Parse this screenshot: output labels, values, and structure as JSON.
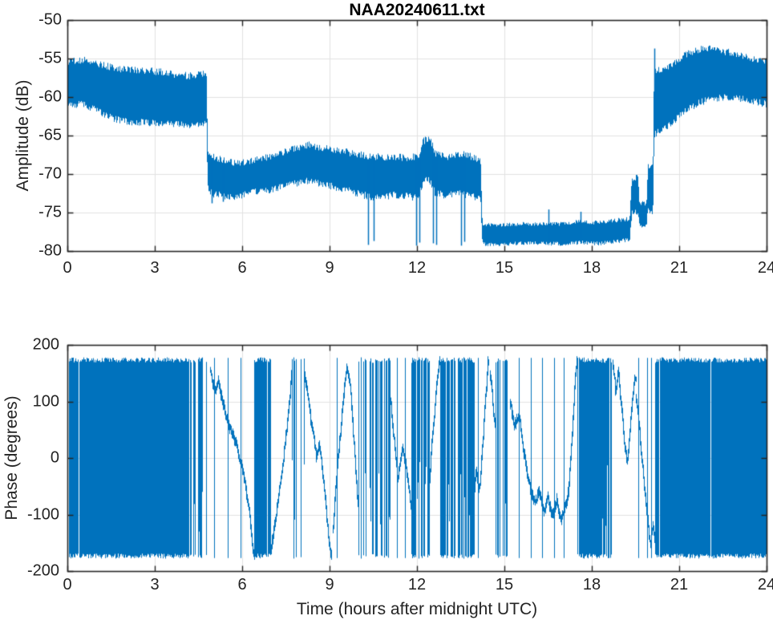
{
  "figure": {
    "background": "#ffffff",
    "line_color": "#0072bd",
    "grid_color": "#e2e2e2",
    "axis_color": "#262626",
    "text_color": "#242424",
    "title_color": "#000000"
  },
  "chart_data": [
    {
      "type": "line",
      "title": "NAA20240611.txt",
      "xlabel": "",
      "ylabel": "Amplitude (dB)",
      "xlim": [
        0,
        24
      ],
      "ylim": [
        -80,
        -50
      ],
      "xticks": [
        0,
        3,
        6,
        9,
        12,
        15,
        18,
        21,
        24
      ],
      "yticks": [
        -80,
        -75,
        -70,
        -65,
        -60,
        -55,
        -50
      ],
      "grid": true,
      "series_style": "noisy-band",
      "band_envelope": [
        [
          0.0,
          -55.7,
          -61.0
        ],
        [
          0.6,
          -55.5,
          -60.8
        ],
        [
          1.2,
          -56.0,
          -62.0
        ],
        [
          1.8,
          -56.5,
          -62.8
        ],
        [
          2.4,
          -56.8,
          -63.2
        ],
        [
          3.0,
          -57.0,
          -63.3
        ],
        [
          3.6,
          -57.3,
          -63.4
        ],
        [
          4.2,
          -57.4,
          -63.5
        ],
        [
          4.6,
          -57.1,
          -63.4
        ],
        [
          4.78,
          -56.9,
          -63.2
        ],
        [
          4.82,
          -67.3,
          -71.5
        ],
        [
          5.0,
          -67.8,
          -72.3
        ],
        [
          5.4,
          -68.3,
          -72.6
        ],
        [
          5.8,
          -68.8,
          -72.8
        ],
        [
          6.2,
          -68.6,
          -72.4
        ],
        [
          6.6,
          -68.2,
          -72.0
        ],
        [
          7.0,
          -67.8,
          -71.8
        ],
        [
          7.5,
          -67.1,
          -71.2
        ],
        [
          8.0,
          -66.5,
          -70.7
        ],
        [
          8.3,
          -66.2,
          -70.5
        ],
        [
          8.7,
          -66.8,
          -71.1
        ],
        [
          9.2,
          -67.1,
          -71.6
        ],
        [
          9.7,
          -67.5,
          -72.1
        ],
        [
          10.2,
          -67.8,
          -72.6
        ],
        [
          10.7,
          -67.9,
          -72.9
        ],
        [
          11.2,
          -68.0,
          -72.5
        ],
        [
          11.7,
          -68.1,
          -72.8
        ],
        [
          12.05,
          -68.0,
          -73.0
        ],
        [
          12.2,
          -66.2,
          -71.2
        ],
        [
          12.35,
          -65.7,
          -70.6
        ],
        [
          12.5,
          -66.3,
          -71.3
        ],
        [
          12.62,
          -67.6,
          -72.4
        ],
        [
          13.0,
          -68.2,
          -72.8
        ],
        [
          13.35,
          -67.7,
          -72.3
        ],
        [
          13.6,
          -67.6,
          -72.4
        ],
        [
          14.0,
          -68.0,
          -72.8
        ],
        [
          14.18,
          -68.3,
          -73.0
        ],
        [
          14.25,
          -76.6,
          -78.9
        ],
        [
          15.0,
          -76.7,
          -79.0
        ],
        [
          16.0,
          -76.6,
          -78.9
        ],
        [
          17.0,
          -76.4,
          -78.8
        ],
        [
          17.6,
          -76.1,
          -78.6
        ],
        [
          18.2,
          -76.4,
          -78.9
        ],
        [
          18.8,
          -76.2,
          -78.7
        ],
        [
          19.3,
          -76.0,
          -78.5
        ],
        [
          19.38,
          -70.8,
          -75.0
        ],
        [
          19.6,
          -70.6,
          -74.8
        ],
        [
          19.64,
          -73.8,
          -76.5
        ],
        [
          19.88,
          -74.0,
          -76.6
        ],
        [
          19.93,
          -69.0,
          -74.6
        ],
        [
          20.1,
          -69.2,
          -74.8
        ],
        [
          20.14,
          -56.8,
          -64.6
        ],
        [
          20.45,
          -56.4,
          -63.9
        ],
        [
          20.8,
          -55.9,
          -63.0
        ],
        [
          21.2,
          -54.8,
          -61.5
        ],
        [
          21.6,
          -54.2,
          -60.9
        ],
        [
          22.0,
          -54.1,
          -60.3
        ],
        [
          22.6,
          -54.4,
          -59.9
        ],
        [
          23.2,
          -54.9,
          -60.0
        ],
        [
          24.0,
          -55.4,
          -60.7
        ]
      ],
      "spikes_down": [
        [
          4.95,
          -73.8
        ],
        [
          5.35,
          -73.6
        ],
        [
          10.33,
          -79.2
        ],
        [
          10.5,
          -78.7
        ],
        [
          11.97,
          -79.3
        ],
        [
          12.07,
          -78.9
        ],
        [
          12.55,
          -79.0
        ],
        [
          12.65,
          -79.2
        ],
        [
          13.5,
          -79.3
        ],
        [
          13.62,
          -78.8
        ]
      ],
      "spikes_up": [
        [
          16.5,
          -74.6
        ],
        [
          17.62,
          -74.9
        ],
        [
          20.16,
          -53.7
        ]
      ]
    },
    {
      "type": "line",
      "title": "",
      "xlabel": "Time (hours after midnight UTC)",
      "ylabel": "Phase (degrees)",
      "xlim": [
        0,
        24
      ],
      "ylim": [
        -200,
        200
      ],
      "xticks": [
        0,
        3,
        6,
        9,
        12,
        15,
        18,
        21,
        24
      ],
      "yticks": [
        -200,
        -100,
        0,
        100,
        200
      ],
      "grid": true,
      "series_style": "phase-wrapped",
      "data_range": [
        -180,
        180
      ],
      "segments": [
        {
          "kind": "dense",
          "t0": 0.05,
          "t1": 4.2
        },
        {
          "kind": "stripes",
          "t0": 4.2,
          "t1": 4.6,
          "density": 0.55
        },
        {
          "kind": "stripes",
          "t0": 4.6,
          "t1": 4.9,
          "density": 0.3
        },
        {
          "kind": "trace",
          "points": [
            [
              4.9,
              155
            ],
            [
              5.05,
              120
            ],
            [
              5.2,
              135
            ],
            [
              5.35,
              95
            ],
            [
              5.5,
              65
            ],
            [
              5.65,
              45
            ],
            [
              5.8,
              25
            ],
            [
              5.95,
              -5
            ],
            [
              6.1,
              -45
            ],
            [
              6.25,
              -95
            ],
            [
              6.35,
              -150
            ],
            [
              6.42,
              -175
            ]
          ]
        },
        {
          "kind": "dense",
          "t0": 6.42,
          "t1": 6.95
        },
        {
          "kind": "trace",
          "points": [
            [
              6.95,
              -175
            ],
            [
              7.1,
              -125
            ],
            [
              7.25,
              -70
            ],
            [
              7.4,
              -10
            ],
            [
              7.55,
              60
            ],
            [
              7.65,
              115
            ],
            [
              7.72,
              165
            ]
          ]
        },
        {
          "kind": "stripes",
          "t0": 7.72,
          "t1": 8.15,
          "density": 0.5
        },
        {
          "kind": "trace",
          "points": [
            [
              8.15,
              150
            ],
            [
              8.3,
              90
            ],
            [
              8.45,
              40
            ],
            [
              8.55,
              0
            ],
            [
              8.65,
              25
            ],
            [
              8.75,
              -15
            ],
            [
              8.85,
              -70
            ],
            [
              8.95,
              -130
            ],
            [
              9.05,
              -170
            ]
          ]
        },
        {
          "kind": "trace",
          "points": [
            [
              9.1,
              -150
            ],
            [
              9.2,
              -60
            ],
            [
              9.35,
              30
            ],
            [
              9.5,
              120
            ],
            [
              9.6,
              160
            ],
            [
              9.72,
              120
            ],
            [
              9.82,
              40
            ],
            [
              9.92,
              -40
            ],
            [
              10.0,
              -100
            ]
          ]
        },
        {
          "kind": "stripes",
          "t0": 10.0,
          "t1": 11.1,
          "density": 0.6
        },
        {
          "kind": "trace",
          "points": [
            [
              11.1,
              100
            ],
            [
              11.22,
              30
            ],
            [
              11.35,
              -40
            ],
            [
              11.5,
              20
            ],
            [
              11.65,
              -20
            ],
            [
              11.8,
              -90
            ]
          ]
        },
        {
          "kind": "stripes",
          "t0": 11.8,
          "t1": 12.4,
          "density": 0.68
        },
        {
          "kind": "trace",
          "points": [
            [
              12.4,
              -60
            ],
            [
              12.52,
              30
            ],
            [
              12.66,
              120
            ],
            [
              12.78,
              168
            ]
          ]
        },
        {
          "kind": "stripes",
          "t0": 12.78,
          "t1": 13.95,
          "density": 0.74
        },
        {
          "kind": "trace",
          "points": [
            [
              13.95,
              -70
            ],
            [
              14.05,
              -20
            ],
            [
              14.15,
              -60
            ],
            [
              14.25,
              20
            ],
            [
              14.35,
              100
            ],
            [
              14.44,
              168
            ]
          ]
        },
        {
          "kind": "trace",
          "points": [
            [
              14.5,
              160
            ],
            [
              14.6,
              100
            ],
            [
              14.68,
              55
            ]
          ]
        },
        {
          "kind": "stripes",
          "t0": 14.68,
          "t1": 15.15,
          "density": 0.78
        },
        {
          "kind": "trace",
          "points": [
            [
              15.2,
              100
            ],
            [
              15.35,
              55
            ],
            [
              15.5,
              80
            ],
            [
              15.62,
              30
            ],
            [
              15.75,
              -15
            ],
            [
              15.9,
              -55
            ],
            [
              16.05,
              -80
            ],
            [
              16.2,
              -60
            ],
            [
              16.35,
              -95
            ],
            [
              16.5,
              -70
            ],
            [
              16.65,
              -105
            ],
            [
              16.8,
              -75
            ],
            [
              16.95,
              -110
            ],
            [
              17.1,
              -85
            ],
            [
              17.2,
              -60
            ]
          ]
        },
        {
          "kind": "trace",
          "points": [
            [
              17.2,
              -60
            ],
            [
              17.3,
              20
            ],
            [
              17.4,
              110
            ],
            [
              17.48,
              172
            ]
          ]
        },
        {
          "kind": "dense",
          "t0": 17.5,
          "t1": 18.3
        },
        {
          "kind": "stripes",
          "t0": 18.3,
          "t1": 18.7,
          "density": 0.72
        },
        {
          "kind": "trace",
          "points": [
            [
              18.72,
              170
            ],
            [
              18.82,
              120
            ],
            [
              18.92,
              148
            ],
            [
              19.02,
              90
            ],
            [
              19.12,
              30
            ],
            [
              19.22,
              -10
            ],
            [
              19.32,
              55
            ],
            [
              19.42,
              115
            ],
            [
              19.5,
              145
            ]
          ]
        },
        {
          "kind": "trace",
          "points": [
            [
              19.5,
              120
            ],
            [
              19.62,
              60
            ],
            [
              19.72,
              0
            ],
            [
              19.82,
              -60
            ],
            [
              19.92,
              -110
            ],
            [
              20.02,
              -155
            ],
            [
              20.1,
              -120
            ],
            [
              20.16,
              -145
            ]
          ]
        },
        {
          "kind": "stripes",
          "t0": 20.16,
          "t1": 20.35,
          "density": 0.55
        },
        {
          "kind": "dense",
          "t0": 20.35,
          "t1": 23.97
        }
      ],
      "single_stripes": [
        5.05,
        5.5,
        5.95,
        9.25,
        11.3,
        11.6,
        14.1,
        15.5,
        15.9,
        16.3,
        16.7,
        17.05,
        19.6,
        19.9,
        20.05
      ]
    }
  ]
}
